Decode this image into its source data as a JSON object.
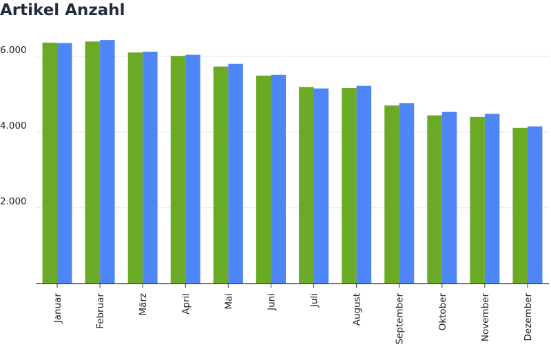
{
  "chart_data": {
    "type": "bar",
    "title": "Artikel Anzahl",
    "xlabel": "",
    "ylabel": "",
    "categories": [
      "Januar",
      "Februar",
      "März",
      "April",
      "Mai",
      "Juni",
      "Juli",
      "August",
      "September",
      "Oktober",
      "November",
      "Dezember"
    ],
    "series": [
      {
        "color": "#6aaa25",
        "values": [
          6360,
          6390,
          6100,
          6010,
          5730,
          5490,
          5190,
          5160,
          4700,
          4440,
          4400,
          4110
        ]
      },
      {
        "color": "#4f86f7",
        "values": [
          6350,
          6430,
          6120,
          6040,
          5800,
          5510,
          5150,
          5220,
          4760,
          4530,
          4480,
          4150
        ]
      }
    ],
    "ylim": [
      0,
      6650
    ],
    "yticks": [
      2000,
      4000,
      6000
    ],
    "ytick_labels": [
      "2.000",
      "4.000",
      "6.000"
    ],
    "grid": true,
    "legend": "none"
  }
}
